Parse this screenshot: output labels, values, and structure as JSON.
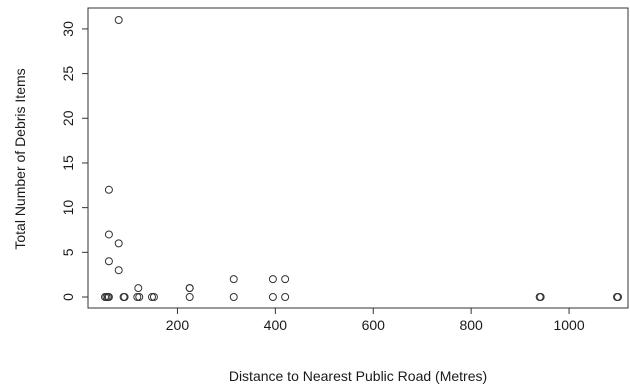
{
  "chart_data": {
    "type": "scatter",
    "title": "",
    "xlabel": "Distance to Nearest Public Road (Metres)",
    "ylabel": "Total Number of Debris Items",
    "xlim": [
      52,
      1100
    ],
    "ylim": [
      0,
      31
    ],
    "x_ticks": [
      200,
      400,
      600,
      800,
      1000
    ],
    "y_ticks": [
      0,
      5,
      10,
      15,
      20,
      25,
      30
    ],
    "grid": false,
    "legend": "none",
    "marker": "open-circle",
    "colors": {
      "marker": "#333333",
      "axis": "#333333",
      "background": "#ffffff"
    },
    "points": [
      {
        "x": 80,
        "y": 31
      },
      {
        "x": 60,
        "y": 12
      },
      {
        "x": 60,
        "y": 7
      },
      {
        "x": 80,
        "y": 6
      },
      {
        "x": 60,
        "y": 4
      },
      {
        "x": 80,
        "y": 3
      },
      {
        "x": 315,
        "y": 2
      },
      {
        "x": 395,
        "y": 2
      },
      {
        "x": 420,
        "y": 2
      },
      {
        "x": 120,
        "y": 1
      },
      {
        "x": 225,
        "y": 1
      },
      {
        "x": 225,
        "y": 1
      },
      {
        "x": 52,
        "y": 0
      },
      {
        "x": 55,
        "y": 0
      },
      {
        "x": 58,
        "y": 0
      },
      {
        "x": 60,
        "y": 0
      },
      {
        "x": 90,
        "y": 0
      },
      {
        "x": 92,
        "y": 0
      },
      {
        "x": 118,
        "y": 0
      },
      {
        "x": 122,
        "y": 0
      },
      {
        "x": 148,
        "y": 0
      },
      {
        "x": 152,
        "y": 0
      },
      {
        "x": 225,
        "y": 0
      },
      {
        "x": 315,
        "y": 0
      },
      {
        "x": 395,
        "y": 0
      },
      {
        "x": 420,
        "y": 0
      },
      {
        "x": 940,
        "y": 0
      },
      {
        "x": 942,
        "y": 0
      },
      {
        "x": 1098,
        "y": 0
      },
      {
        "x": 1100,
        "y": 0
      }
    ]
  }
}
